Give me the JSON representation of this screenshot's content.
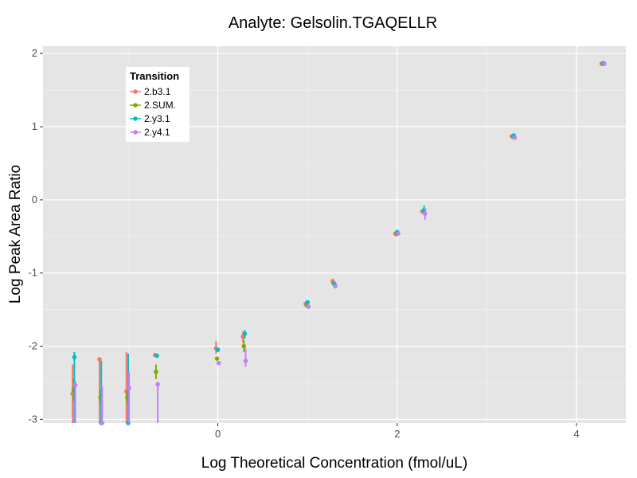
{
  "chart_data": {
    "type": "scatter",
    "title": "Analyte: Gelsolin.TGAQELLR",
    "xlabel": "Log Theoretical Concentration (fmol/uL)",
    "ylabel": "Log Peak Area Ratio",
    "xlim": [
      -1.95,
      4.55
    ],
    "ylim": [
      -3.05,
      2.1
    ],
    "x_ticks": [
      0,
      2,
      4
    ],
    "x_tick_labels": [
      "0",
      "2",
      "4"
    ],
    "y_ticks": [
      -3,
      -2,
      -1,
      0,
      1,
      2
    ],
    "y_tick_labels": [
      "-3",
      "-2",
      "-1",
      "0",
      "1",
      "2"
    ],
    "grid": true,
    "legend_position": "top-left inside",
    "legend_title": "Transition",
    "series": [
      {
        "name": "2.b3.1",
        "color": "#F8766D",
        "points": [
          {
            "x": -1.62,
            "y": -2.65,
            "lo": -3.05,
            "hi": -2.25
          },
          {
            "x": -1.32,
            "y": -2.18,
            "lo": -3.05,
            "hi": -2.18
          },
          {
            "x": -1.02,
            "y": -2.62,
            "lo": -3.05,
            "hi": -2.08
          },
          {
            "x": -0.7,
            "y": -2.12
          },
          {
            "x": -0.02,
            "y": -2.03,
            "lo": -2.1,
            "hi": -1.93
          },
          {
            "x": 0.28,
            "y": -1.87,
            "lo": -1.95,
            "hi": -1.8
          },
          {
            "x": 0.98,
            "y": -1.42
          },
          {
            "x": 1.28,
            "y": -1.11
          },
          {
            "x": 1.98,
            "y": -0.46
          },
          {
            "x": 2.28,
            "y": -0.16
          },
          {
            "x": 3.28,
            "y": 0.87
          },
          {
            "x": 4.28,
            "y": 1.86
          }
        ]
      },
      {
        "name": "2.SUM.",
        "color": "#7CAE00",
        "points": [
          {
            "x": -1.61,
            "y": -2.6,
            "lo": -2.75,
            "hi": -2.45
          },
          {
            "x": -1.31,
            "y": -2.7,
            "lo": -2.78,
            "hi": -2.6
          },
          {
            "x": -1.01,
            "y": -2.7,
            "lo": -2.78,
            "hi": -2.6
          },
          {
            "x": -0.69,
            "y": -2.35,
            "lo": -2.45,
            "hi": -2.25
          },
          {
            "x": -0.01,
            "y": -2.17
          },
          {
            "x": 0.29,
            "y": -2.0,
            "lo": -2.08,
            "hi": -1.92
          },
          {
            "x": 0.99,
            "y": -1.44
          },
          {
            "x": 1.29,
            "y": -1.14
          },
          {
            "x": 1.99,
            "y": -0.47
          },
          {
            "x": 2.29,
            "y": -0.15
          },
          {
            "x": 3.29,
            "y": 0.86
          },
          {
            "x": 4.29,
            "y": 1.86
          }
        ]
      },
      {
        "name": "2.y3.1",
        "color": "#00BFC4",
        "points": [
          {
            "x": -1.6,
            "y": -2.15,
            "lo": -3.05,
            "hi": -2.08
          },
          {
            "x": -1.3,
            "y": -3.05,
            "lo": -3.05,
            "hi": -2.2
          },
          {
            "x": -1.0,
            "y": -3.05,
            "lo": -3.05,
            "hi": -2.1
          },
          {
            "x": -0.68,
            "y": -2.13
          },
          {
            "x": 0.0,
            "y": -2.05
          },
          {
            "x": 0.3,
            "y": -1.83,
            "lo": -1.9,
            "hi": -1.78
          },
          {
            "x": 1.0,
            "y": -1.4
          },
          {
            "x": 1.3,
            "y": -1.15
          },
          {
            "x": 2.0,
            "y": -0.44
          },
          {
            "x": 2.3,
            "y": -0.14,
            "lo": -0.2,
            "hi": -0.08
          },
          {
            "x": 3.3,
            "y": 0.88
          },
          {
            "x": 4.3,
            "y": 1.87
          }
        ]
      },
      {
        "name": "2.y4.1",
        "color": "#C77CFF",
        "points": [
          {
            "x": -1.59,
            "y": -2.53,
            "lo": -3.05,
            "hi": -2.48
          },
          {
            "x": -1.29,
            "y": -3.05,
            "lo": -3.05,
            "hi": -2.55
          },
          {
            "x": -0.99,
            "y": -2.57,
            "lo": -3.05,
            "hi": -2.35
          },
          {
            "x": -0.67,
            "y": -2.52,
            "lo": -3.05,
            "hi": -2.5
          },
          {
            "x": 0.01,
            "y": -2.23
          },
          {
            "x": 0.31,
            "y": -2.2,
            "lo": -2.28,
            "hi": -2.03
          },
          {
            "x": 1.01,
            "y": -1.46
          },
          {
            "x": 1.31,
            "y": -1.18
          },
          {
            "x": 2.01,
            "y": -0.46
          },
          {
            "x": 2.31,
            "y": -0.19,
            "lo": -0.27,
            "hi": -0.12
          },
          {
            "x": 3.31,
            "y": 0.85
          },
          {
            "x": 4.31,
            "y": 1.86
          }
        ]
      }
    ]
  }
}
